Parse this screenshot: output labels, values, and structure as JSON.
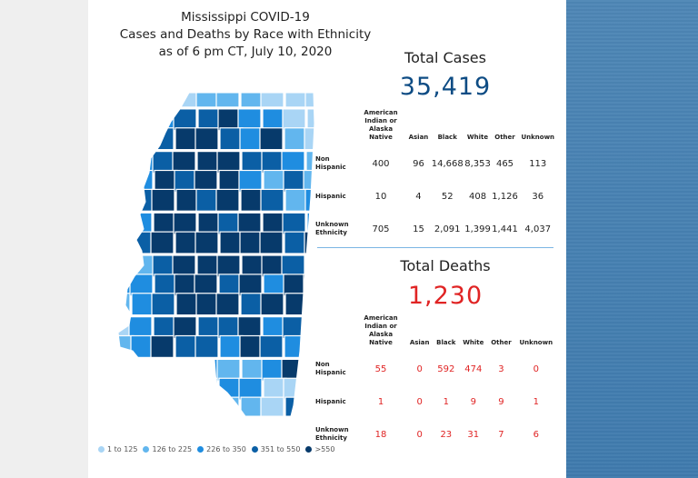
{
  "title": {
    "line1": "Mississippi COVID-19",
    "line2": "Cases and Deaths by Race with Ethnicity",
    "line3": "as of 6 pm CT, July 10, 2020"
  },
  "colors": {
    "scale": [
      "#a9d5f5",
      "#62b6ee",
      "#1f8de0",
      "#0b5fa5",
      "#073a6b"
    ],
    "cases_number": "#0e4c84",
    "deaths_number": "#e02424",
    "side_strip": "#4a84b6"
  },
  "legend": [
    {
      "label": "1 to 125"
    },
    {
      "label": "126 to 225"
    },
    {
      "label": "226 to 350"
    },
    {
      "label": "351 to 550"
    },
    {
      "label": ">550"
    }
  ],
  "cases": {
    "heading": "Total Cases",
    "total": "35,419",
    "columns": [
      "American Indian or Alaska Native",
      "Asian",
      "Black",
      "White",
      "Other",
      "Unknown"
    ],
    "rows": [
      {
        "label": "Non Hispanic",
        "values": [
          "400",
          "96",
          "14,668",
          "8,353",
          "465",
          "113"
        ]
      },
      {
        "label": "Hispanic",
        "values": [
          "10",
          "4",
          "52",
          "408",
          "1,126",
          "36"
        ]
      },
      {
        "label": "Unknown Ethnicity",
        "values": [
          "705",
          "15",
          "2,091",
          "1,399",
          "1,441",
          "4,037"
        ]
      }
    ]
  },
  "deaths": {
    "heading": "Total Deaths",
    "total": "1,230",
    "columns": [
      "American Indian or Alaska Native",
      "Asian",
      "Black",
      "White",
      "Other",
      "Unknown"
    ],
    "rows": [
      {
        "label": "Non Hispanic",
        "values": [
          "55",
          "0",
          "592",
          "474",
          "3",
          "0"
        ]
      },
      {
        "label": "Hispanic",
        "values": [
          "1",
          "0",
          "1",
          "9",
          "9",
          "1"
        ]
      },
      {
        "label": "Unknown Ethnicity",
        "values": [
          "18",
          "0",
          "23",
          "31",
          "7",
          "6"
        ]
      }
    ]
  }
}
